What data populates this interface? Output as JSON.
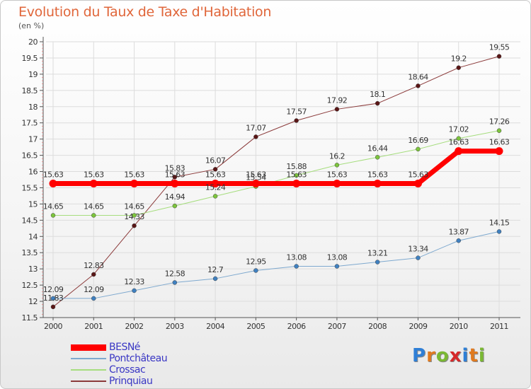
{
  "title": "Evolution du Taux de Taxe d'Habitation",
  "unit": "(en %)",
  "logo": {
    "letters": [
      "P",
      "r",
      "o",
      "x",
      "i",
      "t",
      "i"
    ],
    "colors": [
      "#2f7fd6",
      "#e07a1f",
      "#7ab833",
      "#d6282a",
      "#2f7fd6",
      "#e07a1f",
      "#7ab833"
    ]
  },
  "chart_data": {
    "type": "line",
    "title": "Evolution du Taux de Taxe d'Habitation",
    "ylabel": "(en %)",
    "xlabel": "",
    "categories": [
      "2000",
      "2001",
      "2002",
      "2003",
      "2004",
      "2005",
      "2006",
      "2007",
      "2008",
      "2009",
      "2010",
      "2011"
    ],
    "ylim": [
      11.5,
      20
    ],
    "yticks": [
      "11.5",
      "12",
      "12.5",
      "13",
      "13.5",
      "14",
      "14.5",
      "15",
      "15.5",
      "16",
      "16.5",
      "17",
      "17.5",
      "18",
      "18.5",
      "19",
      "19.5",
      "20"
    ],
    "legend_position": "bottom-left",
    "series": [
      {
        "name": "Prinquiau",
        "color": "#8b3a3a",
        "marker": "#5a1616",
        "width": 1,
        "values": [
          11.83,
          12.83,
          14.33,
          15.83,
          16.07,
          17.07,
          17.57,
          17.92,
          18.1,
          18.64,
          19.2,
          19.55
        ],
        "labels": [
          "11.83",
          "12.83",
          "14.33",
          "15.83",
          "16.07",
          "17.07",
          "17.57",
          "17.92",
          "18.1",
          "18.64",
          "19.2",
          "19.55"
        ]
      },
      {
        "name": "Crossac",
        "color": "#a6dd7e",
        "marker": "#7cc43c",
        "width": 1,
        "values": [
          14.65,
          14.65,
          14.65,
          14.94,
          15.24,
          15.54,
          15.88,
          16.2,
          16.44,
          16.69,
          17.02,
          17.26
        ],
        "labels": [
          "14.65",
          "14.65",
          "14.65",
          "14.94",
          "15.24",
          "15.54",
          "15.88",
          "16.2",
          "16.44",
          "16.69",
          "17.02",
          "17.26"
        ]
      },
      {
        "name": "Pontchâteau",
        "color": "#7ea9cf",
        "marker": "#3f80c0",
        "width": 1,
        "values": [
          12.09,
          12.09,
          12.33,
          12.58,
          12.7,
          12.95,
          13.08,
          13.08,
          13.21,
          13.34,
          13.87,
          14.15
        ],
        "labels": [
          "12.09",
          "12.09",
          "12.33",
          "12.58",
          "12.7",
          "12.95",
          "13.08",
          "13.08",
          "13.21",
          "13.34",
          "13.87",
          "14.15"
        ]
      },
      {
        "name": "BESNé",
        "color": "#ff0000",
        "marker": "#ff0000",
        "width": 7,
        "values": [
          15.63,
          15.63,
          15.63,
          15.63,
          15.63,
          15.63,
          15.63,
          15.63,
          15.63,
          15.63,
          16.63,
          16.63
        ],
        "labels": [
          "15.63",
          "15.63",
          "15.63",
          "15.63",
          "15.63",
          "15.63",
          "15.63",
          "15.63",
          "15.63",
          "15.63",
          "16.63",
          "16.63"
        ]
      }
    ],
    "legend": [
      {
        "name": "BESNé",
        "color": "#ff0000",
        "thick": true
      },
      {
        "name": "Pontchâteau",
        "color": "#7ea9cf",
        "thick": false
      },
      {
        "name": "Crossac",
        "color": "#a6dd7e",
        "thick": false
      },
      {
        "name": "Prinquiau",
        "color": "#8b3a3a",
        "thick": false
      }
    ]
  }
}
